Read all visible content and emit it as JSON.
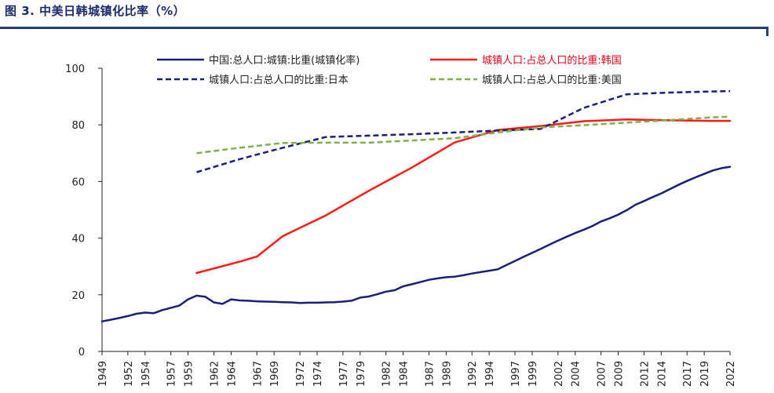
{
  "figure_title": "图 3. 中美日韩城镇化比率（%）",
  "colors": {
    "china": "#1a1f7a",
    "korea": "#ff1a1a",
    "japan": "#1a1f7a",
    "usa": "#7fb04a",
    "title": "#1a2a6c"
  },
  "chart_data": {
    "type": "line",
    "ylim": [
      0,
      100
    ],
    "yticks": [
      0,
      20,
      40,
      60,
      80,
      100
    ],
    "xlim": [
      1949,
      2022
    ],
    "xticks": [
      1949,
      1952,
      1954,
      1957,
      1959,
      1962,
      1964,
      1967,
      1969,
      1972,
      1974,
      1977,
      1979,
      1982,
      1984,
      1987,
      1989,
      1992,
      1994,
      1997,
      1999,
      2002,
      2004,
      2007,
      2009,
      2012,
      2014,
      2017,
      2019,
      2022
    ],
    "legend": "top",
    "series": [
      {
        "name": "中国:总人口:城镇:比重(城镇化率)",
        "style": "solid",
        "color": "#1a1f7a",
        "x": [
          1949,
          1950,
          1951,
          1952,
          1953,
          1954,
          1955,
          1956,
          1957,
          1958,
          1959,
          1960,
          1961,
          1962,
          1963,
          1964,
          1965,
          1966,
          1967,
          1968,
          1969,
          1970,
          1971,
          1972,
          1973,
          1974,
          1975,
          1976,
          1977,
          1978,
          1979,
          1980,
          1981,
          1982,
          1983,
          1984,
          1985,
          1986,
          1987,
          1988,
          1989,
          1990,
          1991,
          1992,
          1993,
          1994,
          1995,
          1996,
          1997,
          1998,
          1999,
          2000,
          2001,
          2002,
          2003,
          2004,
          2005,
          2006,
          2007,
          2008,
          2009,
          2010,
          2011,
          2012,
          2013,
          2014,
          2015,
          2016,
          2017,
          2018,
          2019,
          2020,
          2021,
          2022
        ],
        "y": [
          10.6,
          11.2,
          11.8,
          12.5,
          13.3,
          13.7,
          13.5,
          14.6,
          15.4,
          16.2,
          18.4,
          19.7,
          19.3,
          17.3,
          16.8,
          18.4,
          18.0,
          17.9,
          17.7,
          17.6,
          17.5,
          17.4,
          17.3,
          17.1,
          17.2,
          17.2,
          17.3,
          17.4,
          17.6,
          17.9,
          19.0,
          19.4,
          20.2,
          21.1,
          21.6,
          23.0,
          23.7,
          24.5,
          25.3,
          25.8,
          26.2,
          26.4,
          26.9,
          27.5,
          28.0,
          28.5,
          29.0,
          30.5,
          31.9,
          33.4,
          34.8,
          36.2,
          37.7,
          39.1,
          40.5,
          41.8,
          43.0,
          44.3,
          45.9,
          47.0,
          48.3,
          49.9,
          51.8,
          53.1,
          54.5,
          55.8,
          57.3,
          58.8,
          60.2,
          61.5,
          62.7,
          63.9,
          64.7,
          65.2
        ]
      },
      {
        "name": "城镇人口:占总人口的比重:韩国",
        "style": "solid",
        "color": "#ff1a1a",
        "x": [
          1960,
          1965,
          1967,
          1970,
          1975,
          1980,
          1985,
          1990,
          1995,
          2000,
          2005,
          2010,
          2015,
          2020,
          2022
        ],
        "y": [
          27.7,
          31.7,
          33.5,
          40.7,
          48.0,
          56.7,
          64.9,
          73.8,
          78.2,
          79.6,
          81.3,
          81.9,
          81.6,
          81.4,
          81.4
        ]
      },
      {
        "name": "城镇人口:占总人口的比重:日本",
        "style": "dashed",
        "color": "#1a1f7a",
        "x": [
          1960,
          1965,
          1970,
          1975,
          1980,
          1985,
          1990,
          1995,
          2000,
          2005,
          2010,
          2015,
          2020,
          2022
        ],
        "y": [
          63.3,
          67.9,
          71.9,
          75.7,
          76.2,
          76.7,
          77.3,
          78.0,
          78.6,
          86.0,
          90.8,
          91.4,
          91.8,
          91.9
        ]
      },
      {
        "name": "城镇人口:占总人口的比重:美国",
        "style": "dashed",
        "color": "#7fb04a",
        "x": [
          1960,
          1965,
          1970,
          1975,
          1980,
          1985,
          1990,
          1995,
          2000,
          2005,
          2010,
          2015,
          2020,
          2022
        ],
        "y": [
          70.0,
          71.9,
          73.6,
          73.7,
          73.7,
          74.5,
          75.3,
          77.3,
          79.1,
          79.9,
          80.8,
          81.7,
          82.7,
          82.9
        ]
      }
    ]
  }
}
